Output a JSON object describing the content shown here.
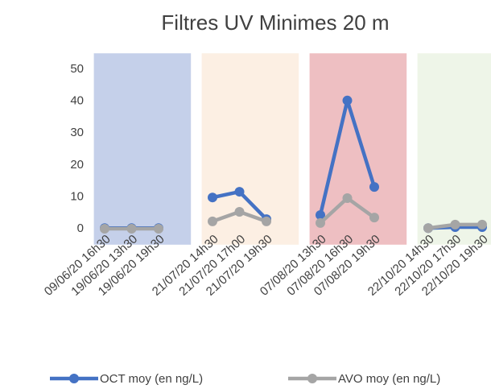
{
  "chart_data": {
    "type": "line",
    "title": "Filtres UV Minimes 20 m",
    "categories": [
      "09/06/20 16h30",
      "19/06/20 13h30",
      "19/06/20 19h30",
      null,
      "21/07/20 14h30",
      "21/07/20 17h00",
      "21/07/20 19h30",
      null,
      "07/08/20 13h30",
      "07/08/20 16h30",
      "07/08/20 19h30",
      null,
      "22/10/20 14h30",
      "22/10/20 17h30",
      "22/10/20 19h30"
    ],
    "series": [
      {
        "name": "OCT moy (en ng/L)",
        "color": "#4472c4",
        "values": [
          0.2,
          0.2,
          0.2,
          null,
          9.8,
          11.6,
          3.0,
          null,
          4.3,
          40.2,
          13.1,
          null,
          0.2,
          0.5,
          0.5
        ]
      },
      {
        "name": "AVO moy (en ng/L)",
        "color": "#a5a5a5",
        "values": [
          0,
          0,
          0,
          null,
          2.3,
          5.3,
          2.3,
          null,
          1.8,
          9.6,
          3.5,
          null,
          0.2,
          1.3,
          1.3
        ]
      }
    ],
    "bands": [
      {
        "color": "#c5d0ea"
      },
      {
        "color": "#fcefe3"
      },
      {
        "color": "#eebfc2"
      },
      {
        "color": "#eef5e8"
      }
    ],
    "ylim": [
      -5,
      55
    ],
    "yticks": [
      0,
      10,
      20,
      30,
      40,
      50
    ],
    "legend": "bottom"
  }
}
